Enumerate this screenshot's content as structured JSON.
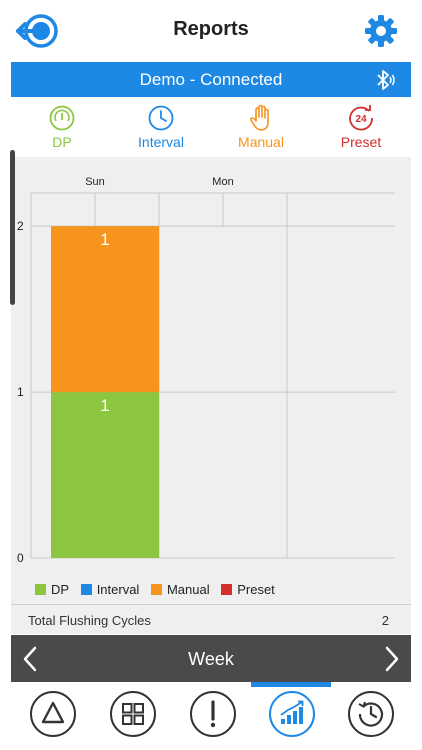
{
  "header": {
    "title": "Reports"
  },
  "status": {
    "text": "Demo - Connected",
    "icon": "bluetooth-icon"
  },
  "modes": [
    {
      "label": "DP",
      "icon": "gauge-icon",
      "color": "#8cc63f"
    },
    {
      "label": "Interval",
      "icon": "clock-icon",
      "color": "#1e88e5"
    },
    {
      "label": "Manual",
      "icon": "hand-icon",
      "color": "#f7941d"
    },
    {
      "label": "Preset",
      "icon": "preset-24-icon",
      "color": "#d32f2f"
    }
  ],
  "chart_data": {
    "type": "bar",
    "stacked": true,
    "categories": [
      "Sun",
      "Mon"
    ],
    "series": [
      {
        "name": "DP",
        "values": [
          1,
          0
        ],
        "color": "#8cc63f"
      },
      {
        "name": "Interval",
        "values": [
          0,
          0
        ],
        "color": "#1e88e5"
      },
      {
        "name": "Manual",
        "values": [
          1,
          0
        ],
        "color": "#f7941d"
      },
      {
        "name": "Preset",
        "values": [
          0,
          0
        ],
        "color": "#d32f2f"
      }
    ],
    "y_ticks": [
      "0",
      "1",
      "2"
    ],
    "ylim": [
      0,
      2.2
    ],
    "x_axis_position": "top",
    "grid": true,
    "legend": "bottom"
  },
  "totals": {
    "label": "Total Flushing Cycles",
    "value": "2"
  },
  "week": {
    "label": "Week"
  },
  "nav": [
    {
      "icon": "warning-triangle-icon",
      "active": false
    },
    {
      "icon": "grid-icon",
      "active": false
    },
    {
      "icon": "exclamation-icon",
      "active": false
    },
    {
      "icon": "reports-chart-icon",
      "active": true
    },
    {
      "icon": "history-clock-icon",
      "active": false
    }
  ],
  "colors": {
    "accent": "#1e88e5",
    "panel": "#efefef",
    "week_bar": "#4a4a4a"
  }
}
